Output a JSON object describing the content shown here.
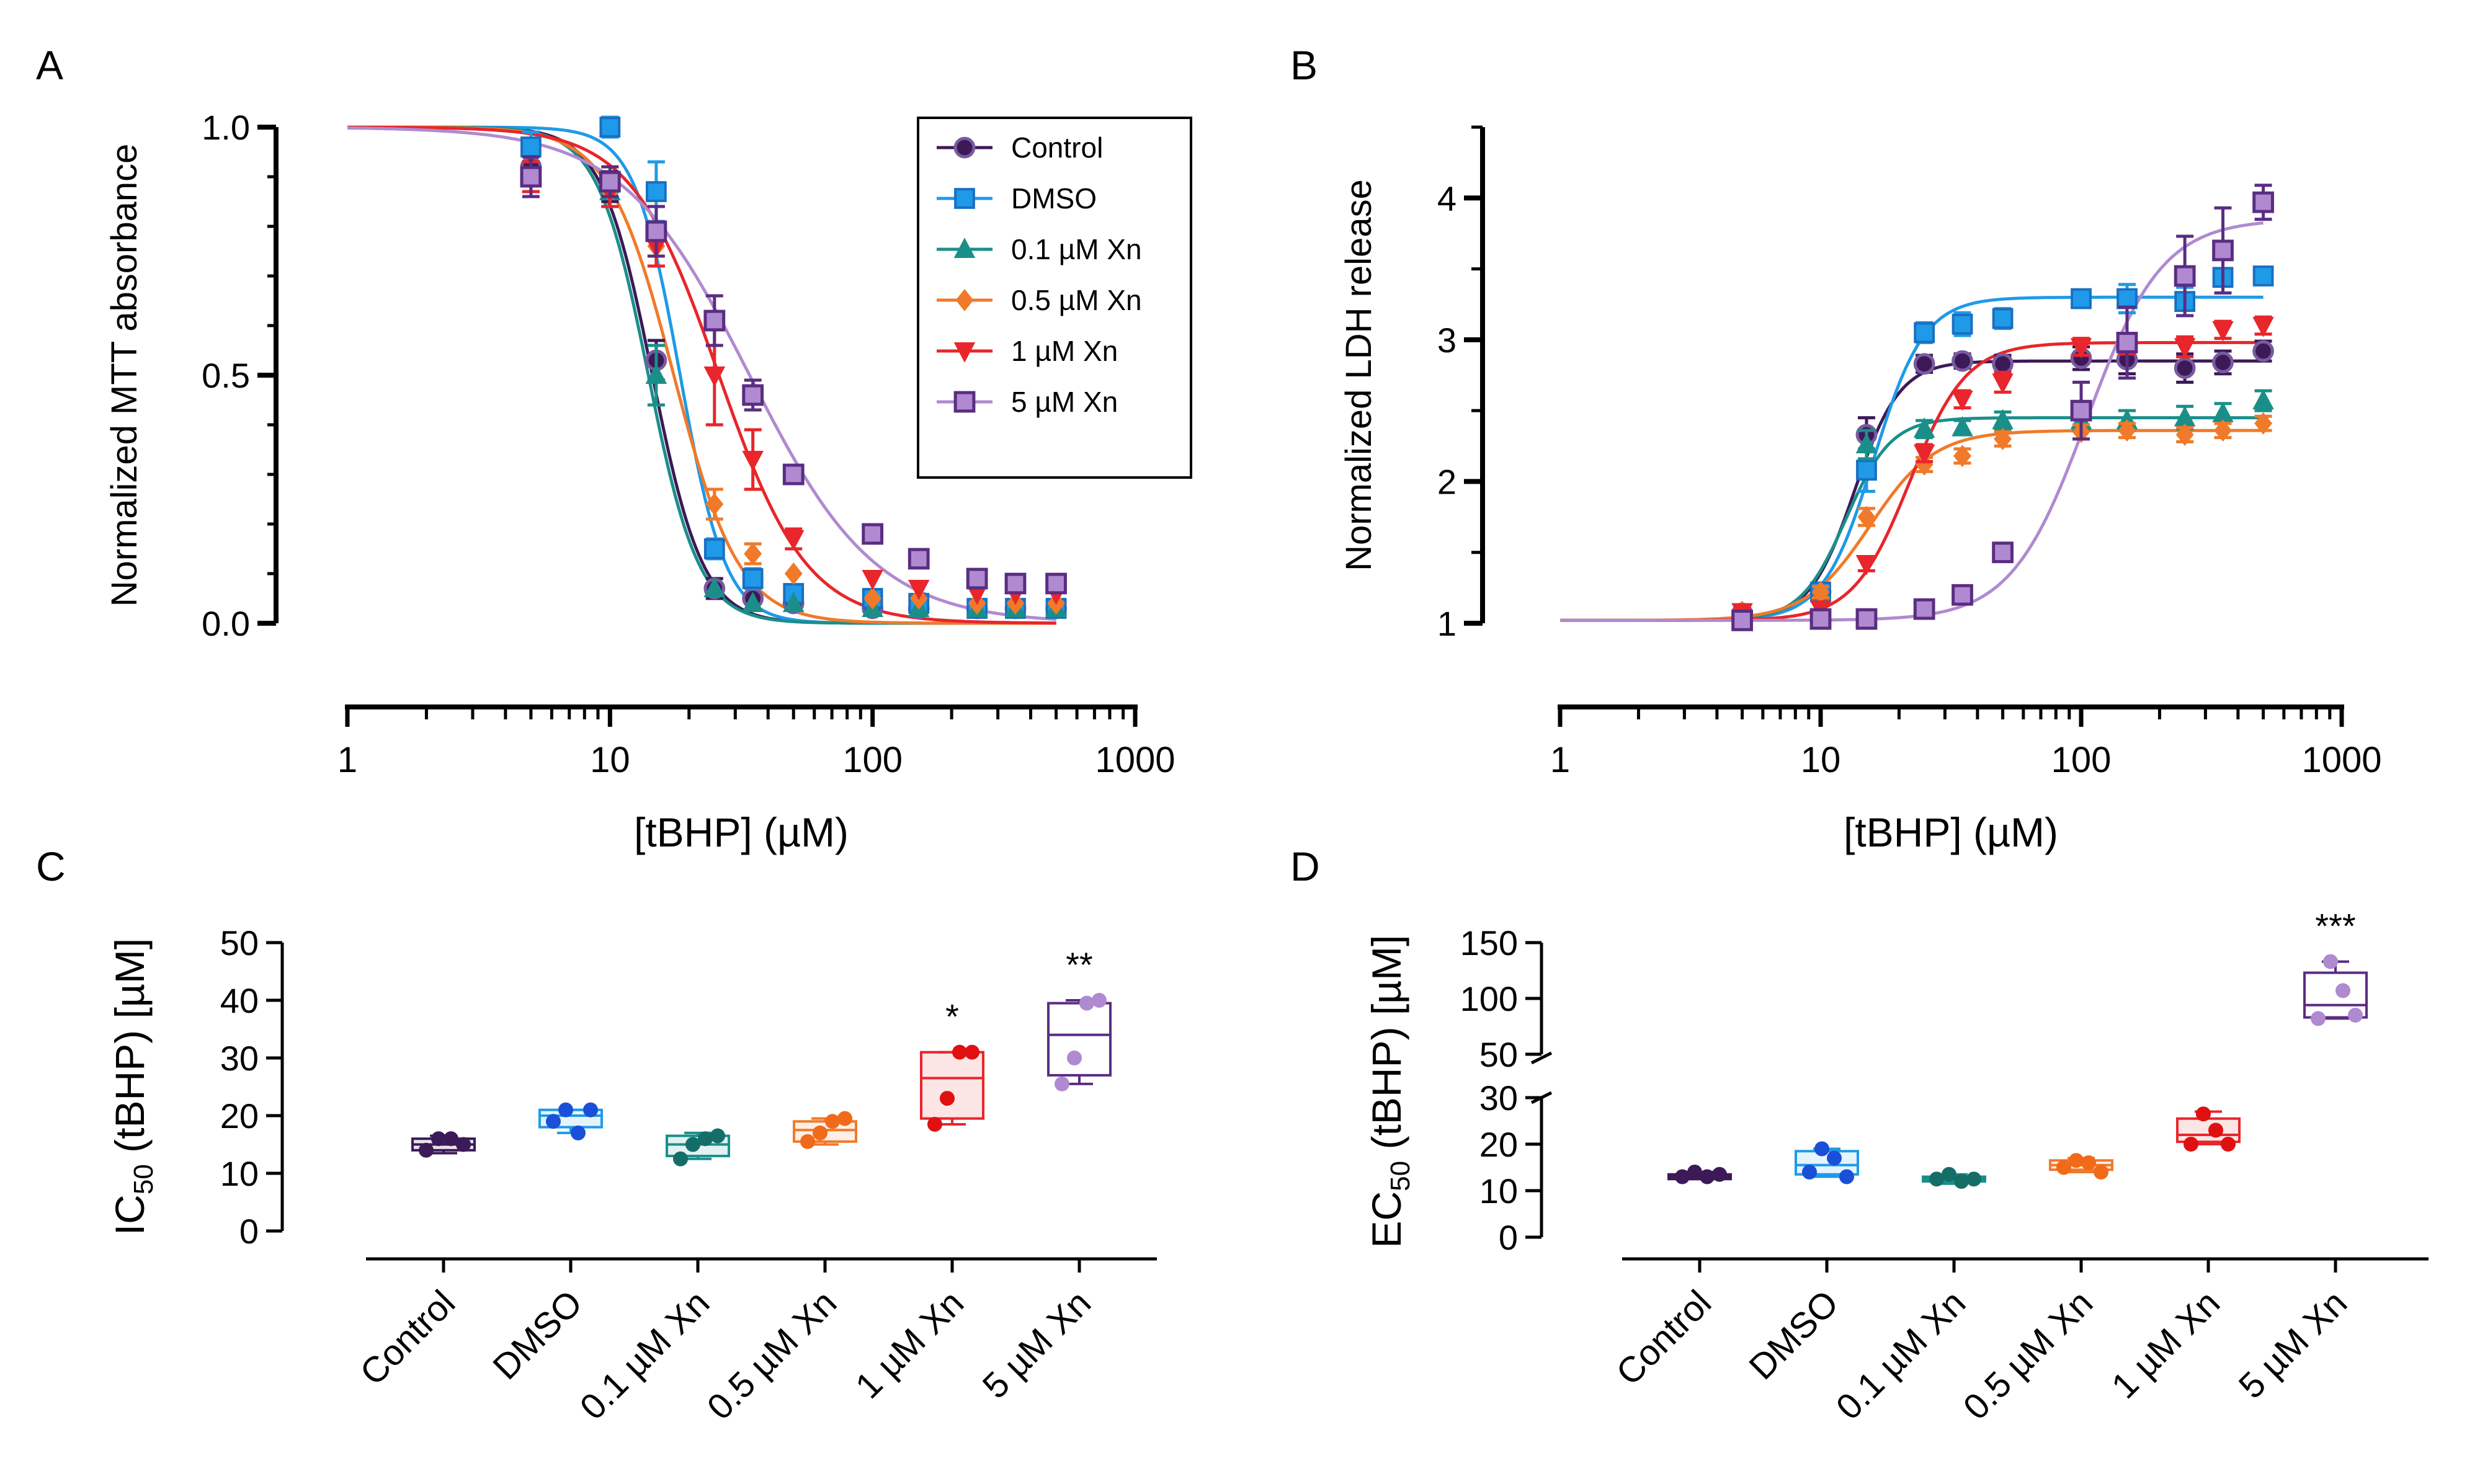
{
  "figure": {
    "panel_labels": [
      "A",
      "B",
      "C",
      "D"
    ]
  },
  "colors": {
    "Control": "#3b1a57",
    "DMSO": "#1f9ae8",
    "0.1 µM Xn": "#1a8f8a",
    "0.5 µM Xn": "#f07a2a",
    "1 µM Xn": "#e8262b",
    "5 µM Xn": "#b08ad0",
    "5 µM Xn dark": "#5a2d82",
    "axis": "#000000"
  },
  "chart_data": [
    {
      "panel": "A",
      "type": "scatter",
      "xscale": "log",
      "xlim": [
        1,
        1000
      ],
      "ylim": [
        0,
        1.0
      ],
      "xticks": [
        "1",
        "10",
        "100",
        "1000"
      ],
      "yticks": [
        "0.0",
        "0.5",
        "1.0"
      ],
      "xlabel": "[tBHP] (µM)",
      "ylabel": "Normalized MTT absorbance",
      "legend_position": "top-right",
      "x": [
        5,
        10,
        15,
        25,
        35,
        50,
        100,
        150,
        250,
        350,
        500
      ],
      "series": [
        {
          "name": "Control",
          "marker": "circle",
          "values": [
            0.92,
            0.88,
            0.53,
            0.07,
            0.05,
            0.04,
            0.03,
            0.03,
            0.03,
            0.03,
            0.03
          ],
          "err": [
            0.05,
            0.03,
            0.04,
            0.02,
            0.01,
            0.01,
            0.01,
            0.01,
            0.01,
            0.01,
            0.01
          ],
          "fit": {
            "ic50": 14.5,
            "hill": 4.5
          }
        },
        {
          "name": "DMSO",
          "marker": "square",
          "values": [
            0.96,
            1.0,
            0.87,
            0.15,
            0.09,
            0.06,
            0.05,
            0.04,
            0.03,
            0.03,
            0.03
          ],
          "err": [
            0.03,
            0.02,
            0.06,
            0.02,
            0.02,
            0.01,
            0.01,
            0.01,
            0.01,
            0.01,
            0.01
          ],
          "fit": {
            "ic50": 18.5,
            "hill": 5.0
          }
        },
        {
          "name": "0.1 µM Xn",
          "marker": "triangle-up",
          "values": [
            0.9,
            0.87,
            0.5,
            0.07,
            0.04,
            0.04,
            0.03,
            0.03,
            0.03,
            0.03,
            0.03
          ],
          "err": [
            0.03,
            0.03,
            0.06,
            0.01,
            0.01,
            0.01,
            0.01,
            0.01,
            0.01,
            0.01,
            0.01
          ],
          "fit": {
            "ic50": 14.0,
            "hill": 4.5
          }
        },
        {
          "name": "0.5 µM Xn",
          "marker": "diamond",
          "values": [
            0.9,
            0.87,
            0.76,
            0.24,
            0.14,
            0.1,
            0.05,
            0.05,
            0.04,
            0.04,
            0.04
          ],
          "err": [
            0.03,
            0.03,
            0.04,
            0.03,
            0.02,
            0.01,
            0.01,
            0.01,
            0.01,
            0.01,
            0.01
          ],
          "fit": {
            "ic50": 17.5,
            "hill": 3.5
          }
        },
        {
          "name": "1 µM Xn",
          "marker": "triangle-down",
          "values": [
            0.9,
            0.87,
            0.76,
            0.5,
            0.33,
            0.17,
            0.09,
            0.07,
            0.06,
            0.06,
            0.06
          ],
          "err": [
            0.03,
            0.03,
            0.04,
            0.1,
            0.06,
            0.02,
            0.01,
            0.01,
            0.01,
            0.01,
            0.01
          ],
          "fit": {
            "ic50": 26,
            "hill": 2.6
          }
        },
        {
          "name": "5 µM Xn",
          "marker": "square-open",
          "values": [
            0.9,
            0.89,
            0.79,
            0.61,
            0.46,
            0.3,
            0.18,
            0.13,
            0.09,
            0.08,
            0.08
          ],
          "err": [
            0.04,
            0.03,
            0.05,
            0.05,
            0.03,
            0.01,
            0.01,
            0.01,
            0.01,
            0.01,
            0.01
          ],
          "fit": {
            "ic50": 34,
            "hill": 1.8
          }
        }
      ]
    },
    {
      "panel": "B",
      "type": "scatter",
      "xscale": "log",
      "xlim": [
        1,
        1000
      ],
      "ylim": [
        1,
        4.5
      ],
      "xticks": [
        "1",
        "10",
        "100",
        "1000"
      ],
      "yticks": [
        "1",
        "2",
        "3",
        "4"
      ],
      "xlabel": "[tBHP] (µM)",
      "ylabel": "Normalized  LDH release",
      "x": [
        5,
        10,
        15,
        25,
        35,
        50,
        100,
        150,
        250,
        350,
        500
      ],
      "series": [
        {
          "name": "Control",
          "marker": "circle",
          "values": [
            1.07,
            1.22,
            2.33,
            2.83,
            2.85,
            2.83,
            2.87,
            2.86,
            2.8,
            2.84,
            2.92
          ],
          "err": [
            0.03,
            0.04,
            0.12,
            0.06,
            0.05,
            0.06,
            0.08,
            0.1,
            0.1,
            0.08,
            0.07
          ],
          "fit": {
            "bottom": 1.02,
            "top": 2.85,
            "ec50": 13.5,
            "hill": 5.0
          }
        },
        {
          "name": "DMSO",
          "marker": "square",
          "values": [
            1.02,
            1.22,
            2.08,
            3.05,
            3.11,
            3.15,
            3.29,
            3.29,
            3.27,
            3.44,
            3.45
          ],
          "err": [
            0.03,
            0.04,
            0.15,
            0.07,
            0.08,
            0.07,
            0.06,
            0.1,
            0.1,
            0.06,
            0.05
          ],
          "fit": {
            "bottom": 1.02,
            "top": 3.3,
            "ec50": 16,
            "hill": 4.5
          }
        },
        {
          "name": "0.1 µM Xn",
          "marker": "triangle-up",
          "values": [
            1.05,
            1.22,
            2.26,
            2.37,
            2.38,
            2.43,
            2.43,
            2.43,
            2.45,
            2.48,
            2.57
          ],
          "err": [
            0.03,
            0.04,
            0.1,
            0.06,
            0.05,
            0.06,
            0.07,
            0.07,
            0.08,
            0.07,
            0.07
          ],
          "fit": {
            "bottom": 1.02,
            "top": 2.45,
            "ec50": 12.5,
            "hill": 5.0
          }
        },
        {
          "name": "0.5 µM Xn",
          "marker": "diamond",
          "values": [
            1.08,
            1.22,
            1.75,
            2.12,
            2.18,
            2.3,
            2.35,
            2.36,
            2.33,
            2.36,
            2.41
          ],
          "err": [
            0.03,
            0.04,
            0.06,
            0.05,
            0.05,
            0.05,
            0.05,
            0.05,
            0.05,
            0.05,
            0.05
          ],
          "fit": {
            "bottom": 1.02,
            "top": 2.36,
            "ec50": 15.5,
            "hill": 3.5
          }
        },
        {
          "name": "1 µM Xn",
          "marker": "triangle-down",
          "values": [
            1.08,
            1.1,
            1.42,
            2.2,
            2.58,
            2.7,
            2.95,
            2.97,
            2.95,
            3.07,
            3.1
          ],
          "err": [
            0.03,
            0.04,
            0.05,
            0.06,
            0.06,
            0.07,
            0.06,
            0.07,
            0.07,
            0.06,
            0.06
          ],
          "fit": {
            "bottom": 1.02,
            "top": 2.98,
            "ec50": 22,
            "hill": 4.0
          }
        },
        {
          "name": "5 µM Xn",
          "marker": "square-open",
          "values": [
            1.02,
            1.03,
            1.03,
            1.1,
            1.2,
            1.5,
            2.5,
            2.98,
            3.45,
            3.63,
            3.97
          ],
          "err": [
            0.02,
            0.02,
            0.02,
            0.03,
            0.04,
            0.06,
            0.2,
            0.25,
            0.28,
            0.3,
            0.12
          ],
          "fit": {
            "bottom": 1.02,
            "top": 3.85,
            "ec50": 105,
            "hill": 3.0
          }
        }
      ]
    },
    {
      "panel": "C",
      "type": "box",
      "ylabel_main": "IC",
      "ylabel_sub": "50",
      "ylabel_rest": " (tBHP) [µM]",
      "ylim": [
        0,
        50
      ],
      "yticks": [
        "0",
        "10",
        "20",
        "30",
        "40",
        "50"
      ],
      "categories": [
        "Control",
        "DMSO",
        "0.1 µM Xn",
        "0.5 µM Xn",
        "1 µM Xn",
        "5 µM Xn"
      ],
      "series": [
        {
          "name": "Control",
          "points": [
            14,
            16,
            16,
            15
          ],
          "min": 13.5,
          "q1": 14,
          "median": 15,
          "q3": 16,
          "max": 16.5,
          "sig": ""
        },
        {
          "name": "DMSO",
          "points": [
            19,
            21,
            17,
            21
          ],
          "min": 17,
          "q1": 18,
          "median": 20,
          "q3": 21,
          "max": 21,
          "sig": ""
        },
        {
          "name": "0.1 µM Xn",
          "points": [
            12.5,
            15,
            16,
            16.5
          ],
          "min": 12.5,
          "q1": 13,
          "median": 15,
          "q3": 16.5,
          "max": 17,
          "sig": ""
        },
        {
          "name": "0.5 µM Xn",
          "points": [
            15.5,
            17,
            19,
            19.5
          ],
          "min": 15,
          "q1": 15.5,
          "median": 17.5,
          "q3": 19,
          "max": 19.5,
          "sig": ""
        },
        {
          "name": "1 µM Xn",
          "points": [
            18.5,
            23,
            31,
            31
          ],
          "min": 18.5,
          "q1": 19.5,
          "median": 26.5,
          "q3": 31,
          "max": 31,
          "sig": "*"
        },
        {
          "name": "5 µM Xn",
          "points": [
            25.5,
            30,
            39.5,
            40
          ],
          "min": 25.5,
          "q1": 27,
          "median": 34,
          "q3": 39.5,
          "max": 40,
          "sig": "**"
        }
      ]
    },
    {
      "panel": "D",
      "type": "box",
      "ylabel_main": "EC",
      "ylabel_sub": "50",
      "ylabel_rest": " (tBHP) [µM]",
      "ylim_lower": [
        0,
        30
      ],
      "ylim_upper": [
        50,
        150
      ],
      "yticks_lower": [
        "0",
        "10",
        "20",
        "30"
      ],
      "yticks_upper": [
        "50",
        "100",
        "150"
      ],
      "categories": [
        "Control",
        "DMSO",
        "0.1 µM Xn",
        "0.5 µM Xn",
        "1 µM Xn",
        "5 µM Xn"
      ],
      "series": [
        {
          "name": "Control",
          "points": [
            13,
            14,
            13,
            13.5
          ],
          "min": 12.5,
          "q1": 12.5,
          "median": 13,
          "q3": 13.5,
          "max": 14,
          "sig": ""
        },
        {
          "name": "DMSO",
          "points": [
            14,
            19,
            17,
            13
          ],
          "min": 13,
          "q1": 13.5,
          "median": 15.5,
          "q3": 18.5,
          "max": 19,
          "sig": ""
        },
        {
          "name": "0.1 µM Xn",
          "points": [
            12.5,
            13.5,
            12,
            12.5
          ],
          "min": 11.5,
          "q1": 12,
          "median": 12.5,
          "q3": 13,
          "max": 13.5,
          "sig": ""
        },
        {
          "name": "0.5 µM Xn",
          "points": [
            15,
            16.5,
            16,
            14
          ],
          "min": 14,
          "q1": 14.5,
          "median": 15.5,
          "q3": 16.5,
          "max": 17,
          "sig": ""
        },
        {
          "name": "1 µM Xn",
          "points": [
            20,
            26.5,
            23,
            20
          ],
          "min": 20,
          "q1": 20.5,
          "median": 22,
          "q3": 25.5,
          "max": 27,
          "sig": ""
        },
        {
          "name": "5 µM Xn",
          "points": [
            82,
            133,
            107,
            85
          ],
          "min": 82,
          "q1": 83,
          "median": 94,
          "q3": 123,
          "max": 133,
          "sig": "***"
        }
      ]
    }
  ]
}
